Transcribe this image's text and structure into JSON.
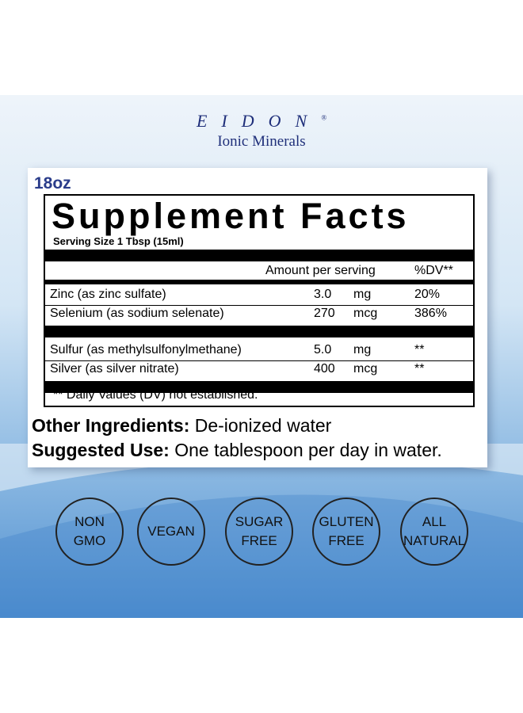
{
  "brand": {
    "name": "EIDON",
    "mark": "®",
    "tagline": "Ionic Minerals"
  },
  "size": "18oz",
  "facts": {
    "title": "Supplement Facts",
    "serving": "Serving Size 1 Tbsp (15ml)",
    "header": [
      "Amount per serving",
      "%DV**"
    ],
    "groups": [
      [
        [
          "Zinc (as zinc sulfate)",
          "3.0",
          "mg",
          "20%"
        ],
        [
          "Selenium (as sodium selenate)",
          "270",
          "mcg",
          "386%"
        ]
      ],
      [
        [
          "Sulfur (as methylsulfonylmethane)",
          "5.0",
          "mg",
          "**"
        ],
        [
          "Silver (as silver nitrate)",
          "400",
          "mcg",
          "**"
        ]
      ]
    ],
    "footnote": "** Daily Values (DV) not established."
  },
  "ingredients": {
    "label": "Other Ingredients:",
    "text": "De-ionized water"
  },
  "use": {
    "label": "Suggested Use:",
    "text": "One tablespoon per day in water."
  },
  "badges": [
    [
      "NON",
      "GMO"
    ],
    [
      "VEGAN"
    ],
    [
      "SUGAR",
      "FREE"
    ],
    [
      "GLUTEN",
      "FREE"
    ],
    [
      "ALL",
      "NATURAL"
    ]
  ]
}
